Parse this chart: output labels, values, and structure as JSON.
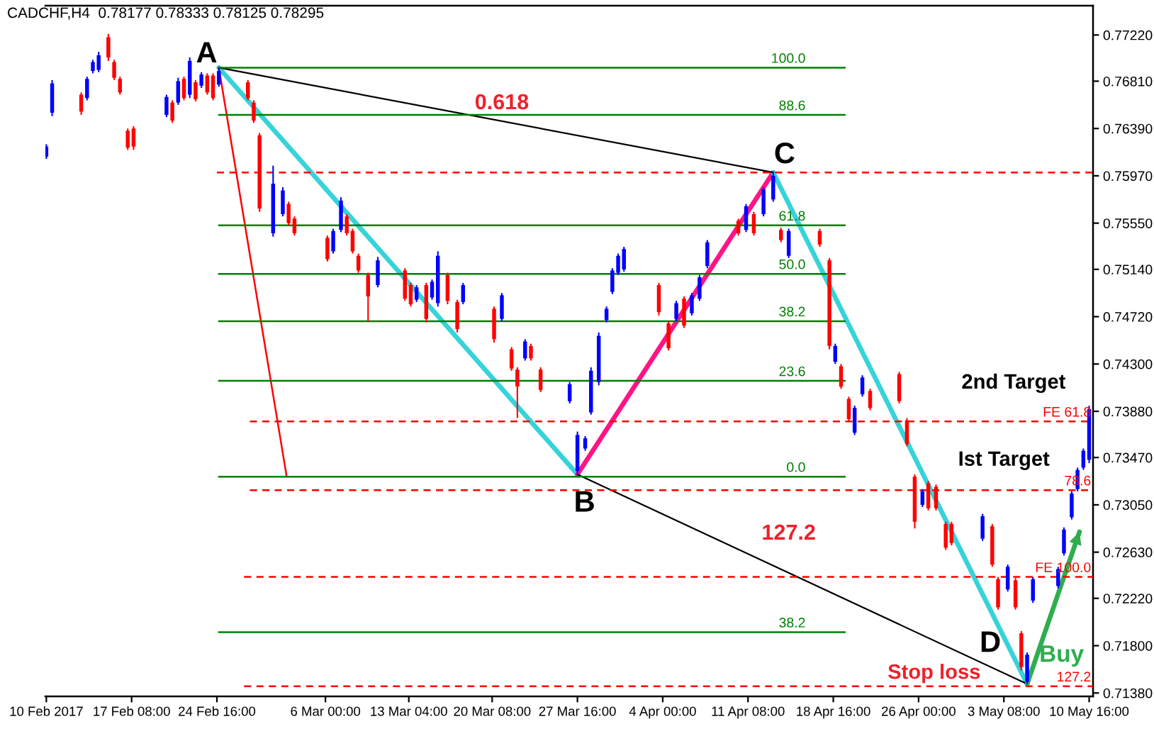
{
  "chart_data": {
    "type": "candlestick",
    "title": "CADCHF,H4  0.78177 0.78333 0.78125 0.78295",
    "x": [
      "2017-02-10T00:00",
      "2017-02-10T12:00",
      "2017-02-13T00:00",
      "2017-02-13T12:00",
      "2017-02-14T00:00",
      "2017-02-14T12:00",
      "2017-02-15T08:00",
      "2017-02-15T20:00",
      "2017-02-16T08:00",
      "2017-02-17T00:00",
      "2017-02-17T12:00",
      "2017-02-20T08:00",
      "2017-02-20T20:00",
      "2017-02-21T08:00",
      "2017-02-21T20:00",
      "2017-02-22T08:00",
      "2017-02-22T20:00",
      "2017-02-23T08:00",
      "2017-02-23T20:00",
      "2017-02-24T08:00",
      "2017-02-24T20:00",
      "2017-02-27T08:00",
      "2017-02-27T20:00",
      "2017-02-28T08:00",
      "2017-03-01T12:00",
      "2017-03-02T08:00",
      "2017-03-02T20:00",
      "2017-03-03T08:00",
      "2017-03-06T04:00",
      "2017-03-06T16:00",
      "2017-03-07T08:00",
      "2017-03-07T20:00",
      "2017-03-08T08:00",
      "2017-03-08T20:00",
      "2017-03-09T16:00",
      "2017-03-10T12:00",
      "2017-03-12T20:00",
      "2017-03-13T08:00",
      "2017-03-13T20:00",
      "2017-03-14T16:00",
      "2017-03-15T04:00",
      "2017-03-15T16:00",
      "2017-03-16T12:00",
      "2017-03-17T08:00",
      "2017-03-17T20:00",
      "2017-03-20T12:00",
      "2017-03-21T04:00",
      "2017-03-22T00:00",
      "2017-03-22T12:00",
      "2017-03-23T04:00",
      "2017-03-23T16:00",
      "2017-03-24T12:00",
      "2017-03-27T00:00",
      "2017-03-27T16:00",
      "2017-03-28T08:00",
      "2017-03-28T20:00",
      "2017-03-29T12:00",
      "2017-03-30T04:00",
      "2017-03-30T16:00",
      "2017-03-31T04:00",
      "2017-03-31T16:00",
      "2017-04-03T16:00",
      "2017-04-04T12:00",
      "2017-04-05T04:00",
      "2017-04-05T20:00",
      "2017-04-06T12:00",
      "2017-04-07T04:00",
      "2017-04-07T20:00",
      "2017-04-10T12:00",
      "2017-04-11T04:00",
      "2017-04-11T20:00",
      "2017-04-12T16:00",
      "2017-04-13T12:00",
      "2017-04-14T04:00",
      "2017-04-14T20:00",
      "2017-04-17T12:00",
      "2017-04-18T08:00",
      "2017-04-18T20:00",
      "2017-04-19T08:00",
      "2017-04-20T00:00",
      "2017-04-20T12:00",
      "2017-04-21T04:00",
      "2017-04-21T20:00",
      "2017-04-24T08:00",
      "2017-04-25T00:00",
      "2017-04-25T16:00",
      "2017-04-26T08:00",
      "2017-04-26T20:00",
      "2017-04-27T12:00",
      "2017-04-28T08:00",
      "2017-04-28T20:00",
      "2017-05-01T12:00",
      "2017-05-02T08:00",
      "2017-05-02T20:00",
      "2017-05-03T16:00",
      "2017-05-04T08:00",
      "2017-05-04T20:00",
      "2017-05-05T08:00",
      "2017-05-05T20:00",
      "2017-05-08T00:00",
      "2017-05-08T12:00",
      "2017-05-09T04:00",
      "2017-05-09T16:00",
      "2017-05-10T04:00",
      "2017-05-10T16:00"
    ],
    "ohlc": [
      [
        0.7614,
        0.7625,
        0.7612,
        0.7623
      ],
      [
        0.7653,
        0.7682,
        0.765,
        0.7679
      ],
      [
        0.7669,
        0.7671,
        0.7651,
        0.7654
      ],
      [
        0.7666,
        0.7685,
        0.7664,
        0.7683
      ],
      [
        0.769,
        0.77,
        0.7688,
        0.7698
      ],
      [
        0.7691,
        0.7707,
        0.7689,
        0.7704
      ],
      [
        0.772,
        0.7723,
        0.7699,
        0.7702
      ],
      [
        0.7698,
        0.77,
        0.7682,
        0.7684
      ],
      [
        0.7683,
        0.7685,
        0.7669,
        0.7671
      ],
      [
        0.7637,
        0.7639,
        0.762,
        0.7622
      ],
      [
        0.7639,
        0.7641,
        0.762,
        0.7623
      ],
      [
        0.7651,
        0.7669,
        0.7649,
        0.7667
      ],
      [
        0.7662,
        0.7664,
        0.7644,
        0.7646
      ],
      [
        0.7662,
        0.7684,
        0.766,
        0.7681
      ],
      [
        0.7683,
        0.7685,
        0.7664,
        0.7666
      ],
      [
        0.7669,
        0.7702,
        0.7666,
        0.7699
      ],
      [
        0.768,
        0.7682,
        0.7663,
        0.7665
      ],
      [
        0.7677,
        0.7689,
        0.7675,
        0.7687
      ],
      [
        0.7686,
        0.7688,
        0.7669,
        0.7671
      ],
      [
        0.7686,
        0.7688,
        0.7664,
        0.7666
      ],
      [
        0.7678,
        0.7693,
        0.7676,
        0.769
      ],
      [
        0.768,
        0.7682,
        0.7664,
        0.7666
      ],
      [
        0.7662,
        0.7664,
        0.7644,
        0.7646
      ],
      [
        0.7633,
        0.7635,
        0.7565,
        0.7568
      ],
      [
        0.7546,
        0.7606,
        0.7543,
        0.759
      ],
      [
        0.7563,
        0.7587,
        0.7561,
        0.7584
      ],
      [
        0.7572,
        0.7574,
        0.7553,
        0.7555
      ],
      [
        0.7559,
        0.7561,
        0.7544,
        0.7546
      ],
      [
        0.7542,
        0.7544,
        0.7521,
        0.7523
      ],
      [
        0.753,
        0.755,
        0.7528,
        0.7548
      ],
      [
        0.7549,
        0.7578,
        0.7547,
        0.7575
      ],
      [
        0.7561,
        0.7563,
        0.7544,
        0.7546
      ],
      [
        0.7548,
        0.755,
        0.7528,
        0.753
      ],
      [
        0.7526,
        0.7528,
        0.7511,
        0.7513
      ],
      [
        0.7509,
        0.7511,
        0.7468,
        0.749
      ],
      [
        0.75,
        0.7525,
        0.7498,
        0.7522
      ],
      [
        0.7513,
        0.7515,
        0.7486,
        0.7488
      ],
      [
        0.75,
        0.7502,
        0.7481,
        0.7483
      ],
      [
        0.7487,
        0.75,
        0.7485,
        0.7498
      ],
      [
        0.75,
        0.7502,
        0.7467,
        0.747
      ],
      [
        0.7489,
        0.7505,
        0.7487,
        0.7503
      ],
      [
        0.7484,
        0.753,
        0.7481,
        0.7526
      ],
      [
        0.7509,
        0.7511,
        0.7483,
        0.7486
      ],
      [
        0.7485,
        0.7487,
        0.7458,
        0.7461
      ],
      [
        0.7485,
        0.7502,
        0.7483,
        0.75
      ],
      [
        0.7479,
        0.7481,
        0.7449,
        0.7452
      ],
      [
        0.747,
        0.7493,
        0.7468,
        0.7491
      ],
      [
        0.7443,
        0.7445,
        0.7424,
        0.7426
      ],
      [
        0.7425,
        0.7427,
        0.7382,
        0.741
      ],
      [
        0.7435,
        0.7452,
        0.7433,
        0.745
      ],
      [
        0.7446,
        0.7448,
        0.7433,
        0.7435
      ],
      [
        0.7425,
        0.7427,
        0.7405,
        0.7407
      ],
      [
        0.7397,
        0.7414,
        0.7395,
        0.7412
      ],
      [
        0.7335,
        0.737,
        0.7332,
        0.7367
      ],
      [
        0.7355,
        0.7366,
        0.7353,
        0.7364
      ],
      [
        0.7387,
        0.7427,
        0.7385,
        0.7424
      ],
      [
        0.7414,
        0.7458,
        0.7411,
        0.7455
      ],
      [
        0.7469,
        0.7481,
        0.7467,
        0.7479
      ],
      [
        0.7494,
        0.7515,
        0.7492,
        0.7513
      ],
      [
        0.7511,
        0.7528,
        0.7509,
        0.7526
      ],
      [
        0.7514,
        0.7534,
        0.7512,
        0.7532
      ],
      [
        0.75,
        0.7502,
        0.7473,
        0.7476
      ],
      [
        0.7466,
        0.7468,
        0.7442,
        0.7444
      ],
      [
        0.747,
        0.7486,
        0.7468,
        0.7484
      ],
      [
        0.7488,
        0.749,
        0.7462,
        0.7464
      ],
      [
        0.7475,
        0.7493,
        0.7473,
        0.7491
      ],
      [
        0.7488,
        0.7509,
        0.7486,
        0.7507
      ],
      [
        0.7517,
        0.754,
        0.7515,
        0.7538
      ],
      [
        0.7557,
        0.7559,
        0.7544,
        0.7546
      ],
      [
        0.7549,
        0.7572,
        0.7547,
        0.757
      ],
      [
        0.7563,
        0.7565,
        0.7544,
        0.7546
      ],
      [
        0.7563,
        0.7587,
        0.7561,
        0.7585
      ],
      [
        0.7576,
        0.76,
        0.7574,
        0.7597
      ],
      [
        0.7549,
        0.7551,
        0.7538,
        0.754
      ],
      [
        0.7526,
        0.755,
        0.7524,
        0.7548
      ],
      [
        0.7548,
        0.755,
        0.7534,
        0.7536
      ],
      [
        0.7522,
        0.7524,
        0.7443,
        0.7446
      ],
      [
        0.7432,
        0.7448,
        0.743,
        0.7446
      ],
      [
        0.7428,
        0.743,
        0.7408,
        0.741
      ],
      [
        0.7399,
        0.7401,
        0.7379,
        0.7381
      ],
      [
        0.7369,
        0.7393,
        0.7367,
        0.7391
      ],
      [
        0.7403,
        0.742,
        0.7401,
        0.7418
      ],
      [
        0.7406,
        0.7408,
        0.7389,
        0.7391
      ],
      [
        0.7421,
        0.7423,
        0.7395,
        0.7397
      ],
      [
        0.738,
        0.7382,
        0.7357,
        0.7359
      ],
      [
        0.733,
        0.7332,
        0.7284,
        0.729
      ],
      [
        0.7305,
        0.7319,
        0.7303,
        0.7317
      ],
      [
        0.7324,
        0.7326,
        0.73,
        0.7302
      ],
      [
        0.7321,
        0.7323,
        0.73,
        0.7302
      ],
      [
        0.7288,
        0.729,
        0.7265,
        0.7267
      ],
      [
        0.7288,
        0.729,
        0.7269,
        0.7271
      ],
      [
        0.7275,
        0.7297,
        0.7273,
        0.7295
      ],
      [
        0.7286,
        0.7288,
        0.725,
        0.7252
      ],
      [
        0.7239,
        0.7241,
        0.7212,
        0.7214
      ],
      [
        0.723,
        0.7252,
        0.7228,
        0.725
      ],
      [
        0.7238,
        0.724,
        0.7212,
        0.7214
      ],
      [
        0.7191,
        0.7193,
        0.7158,
        0.7161
      ],
      [
        0.7148,
        0.7174,
        0.7146,
        0.7172
      ],
      [
        0.722,
        0.7241,
        0.7218,
        0.7239
      ],
      [
        0.7233,
        0.725,
        0.7231,
        0.7248
      ],
      [
        0.7262,
        0.7285,
        0.726,
        0.7283
      ],
      [
        0.7294,
        0.7317,
        0.7292,
        0.7315
      ],
      [
        0.7319,
        0.7338,
        0.7317,
        0.7336
      ],
      [
        0.7338,
        0.7355,
        0.7336,
        0.7353
      ],
      [
        0.7345,
        0.7393,
        0.7342,
        0.739
      ]
    ],
    "colors": [
      "#0000ff",
      "#0000ff",
      "#ff0000",
      "#0000ff",
      "#0000ff",
      "#0000ff",
      "#ff0000",
      "#ff0000",
      "#ff0000",
      "#ff0000",
      "#ff0000",
      "#0000ff",
      "#ff0000",
      "#0000ff",
      "#ff0000",
      "#0000ff",
      "#ff0000",
      "#0000ff",
      "#ff0000",
      "#ff0000",
      "#0000ff",
      "#ff0000",
      "#ff0000",
      "#ff0000",
      "#0000ff",
      "#0000ff",
      "#ff0000",
      "#ff0000",
      "#ff0000",
      "#0000ff",
      "#0000ff",
      "#ff0000",
      "#ff0000",
      "#ff0000",
      "#ff0000",
      "#0000ff",
      "#ff0000",
      "#ff0000",
      "#0000ff",
      "#ff0000",
      "#0000ff",
      "#0000ff",
      "#ff0000",
      "#ff0000",
      "#0000ff",
      "#ff0000",
      "#0000ff",
      "#ff0000",
      "#ff0000",
      "#0000ff",
      "#ff0000",
      "#ff0000",
      "#0000ff",
      "#0000ff",
      "#0000ff",
      "#0000ff",
      "#0000ff",
      "#0000ff",
      "#0000ff",
      "#0000ff",
      "#0000ff",
      "#ff0000",
      "#ff0000",
      "#0000ff",
      "#ff0000",
      "#0000ff",
      "#0000ff",
      "#0000ff",
      "#ff0000",
      "#0000ff",
      "#ff0000",
      "#0000ff",
      "#0000ff",
      "#ff0000",
      "#0000ff",
      "#ff0000",
      "#ff0000",
      "#0000ff",
      "#ff0000",
      "#ff0000",
      "#0000ff",
      "#0000ff",
      "#ff0000",
      "#ff0000",
      "#ff0000",
      "#ff0000",
      "#0000ff",
      "#ff0000",
      "#ff0000",
      "#ff0000",
      "#ff0000",
      "#0000ff",
      "#ff0000",
      "#ff0000",
      "#0000ff",
      "#ff0000",
      "#ff0000",
      "#0000ff",
      "#0000ff",
      "#0000ff",
      "#0000ff",
      "#0000ff",
      "#0000ff",
      "#0000ff",
      "#0000ff"
    ],
    "xlim": [
      "2017-02-09T22:00",
      "2017-05-11T00:00"
    ],
    "xticks": [
      {
        "value": "2017-02-10T00:00",
        "label": "10 Feb 2017"
      },
      {
        "value": "2017-02-17T08:00",
        "label": "17 Feb 08:00"
      },
      {
        "value": "2017-02-24T16:00",
        "label": "24 Feb 16:00"
      },
      {
        "value": "2017-03-06T00:00",
        "label": "6 Mar 00:00"
      },
      {
        "value": "2017-03-13T04:00",
        "label": "13 Mar 04:00"
      },
      {
        "value": "2017-03-20T08:00",
        "label": "20 Mar 08:00"
      },
      {
        "value": "2017-03-27T16:00",
        "label": "27 Mar 16:00"
      },
      {
        "value": "2017-04-04T00:00",
        "label": "4 Apr 00:00"
      },
      {
        "value": "2017-04-11T08:00",
        "label": "11 Apr 08:00"
      },
      {
        "value": "2017-04-18T16:00",
        "label": "18 Apr 16:00"
      },
      {
        "value": "2017-04-26T00:00",
        "label": "26 Apr 00:00"
      },
      {
        "value": "2017-05-03T08:00",
        "label": "3 May 08:00"
      },
      {
        "value": "2017-05-10T16:00",
        "label": "10 May 16:00"
      }
    ],
    "ylim": [
      0.7135,
      0.7748
    ],
    "yticks": [
      {
        "value": 0.7138,
        "label": "0.71380"
      },
      {
        "value": 0.718,
        "label": "0.71800"
      },
      {
        "value": 0.7222,
        "label": "0.72220"
      },
      {
        "value": 0.7263,
        "label": "0.72630"
      },
      {
        "value": 0.7305,
        "label": "0.73050"
      },
      {
        "value": 0.7347,
        "label": "0.73470"
      },
      {
        "value": 0.7388,
        "label": "0.73880"
      },
      {
        "value": 0.743,
        "label": "0.74300"
      },
      {
        "value": 0.7472,
        "label": "0.74720"
      },
      {
        "value": 0.7514,
        "label": "0.75140"
      },
      {
        "value": 0.7555,
        "label": "0.75550"
      },
      {
        "value": 0.7597,
        "label": "0.75970"
      },
      {
        "value": 0.7639,
        "label": "0.76390"
      },
      {
        "value": 0.7681,
        "label": "0.76810"
      },
      {
        "value": 0.7722,
        "label": "0.77220"
      }
    ],
    "series": [
      {
        "type": "line",
        "x": [
          "2017-02-24T20:00",
          "2017-03-27T16:00"
        ],
        "values": [
          0.7693,
          0.7332
        ],
        "color": "#36d3da",
        "line_style": "solid"
      },
      {
        "type": "line",
        "x": [
          "2017-03-27T16:00",
          "2017-04-13T12:00"
        ],
        "values": [
          0.7332,
          0.76
        ],
        "color": "#ff1486",
        "line_style": "solid"
      },
      {
        "type": "line",
        "x": [
          "2017-04-13T12:00",
          "2017-05-05T08:00"
        ],
        "values": [
          0.76,
          0.7146
        ],
        "color": "#36d3da",
        "line_style": "solid"
      },
      {
        "type": "line",
        "x": [
          "2017-02-24T20:00",
          "2017-04-13T12:00"
        ],
        "values": [
          0.7693,
          0.76
        ],
        "color": "#000000",
        "line_style": "solid"
      },
      {
        "type": "line",
        "x": [
          "2017-03-27T16:00",
          "2017-05-05T08:00"
        ],
        "values": [
          0.7332,
          0.7146
        ],
        "color": "#000000",
        "line_style": "solid"
      },
      {
        "type": "line",
        "x": [
          "2017-02-24T20:00",
          "2017-03-02T16:00"
        ],
        "values": [
          0.7693,
          0.733
        ],
        "color": "#ff0000",
        "line_style": "solid"
      },
      {
        "type": "line",
        "x": [
          "2017-05-05T08:00",
          "2017-05-09T20:00"
        ],
        "values": [
          0.7146,
          0.7281
        ],
        "color": "#2fad4f",
        "line_style": "solid"
      },
      {
        "type": "line",
        "name": "100.0",
        "x": [
          "2017-02-24T20:00",
          "2017-04-19T16:00"
        ],
        "values": [
          0.7693,
          0.7693
        ],
        "color": "#008000",
        "line_style": "solid"
      },
      {
        "type": "line",
        "name": "88.6",
        "x": [
          "2017-02-24T20:00",
          "2017-04-19T16:00"
        ],
        "values": [
          0.7651,
          0.7651
        ],
        "color": "#008000",
        "line_style": "solid"
      },
      {
        "type": "line",
        "name": "61.8",
        "x": [
          "2017-02-24T20:00",
          "2017-04-19T16:00"
        ],
        "values": [
          0.7553,
          0.7553
        ],
        "color": "#008000",
        "line_style": "solid"
      },
      {
        "type": "line",
        "name": "50.0",
        "x": [
          "2017-02-24T20:00",
          "2017-04-19T16:00"
        ],
        "values": [
          0.751,
          0.751
        ],
        "color": "#008000",
        "line_style": "solid"
      },
      {
        "type": "line",
        "name": "38.2",
        "x": [
          "2017-02-24T20:00",
          "2017-04-19T16:00"
        ],
        "values": [
          0.7468,
          0.7468
        ],
        "color": "#008000",
        "line_style": "solid"
      },
      {
        "type": "line",
        "name": "23.6",
        "x": [
          "2017-02-24T20:00",
          "2017-04-19T16:00"
        ],
        "values": [
          0.7415,
          0.7415
        ],
        "color": "#008000",
        "line_style": "solid"
      },
      {
        "type": "line",
        "name": "0.0",
        "x": [
          "2017-02-24T20:00",
          "2017-04-19T16:00"
        ],
        "values": [
          0.733,
          0.733
        ],
        "color": "#008000",
        "line_style": "solid"
      },
      {
        "type": "line",
        "name": "38.2",
        "x": [
          "2017-02-24T20:00",
          "2017-04-19T16:00"
        ],
        "values": [
          0.7192,
          0.7192
        ],
        "color": "#008000",
        "line_style": "solid"
      },
      {
        "type": "line",
        "x": [
          "2017-02-24T16:00",
          "2017-05-11T00:00"
        ],
        "values": [
          0.76,
          0.76
        ],
        "color": "#ff0000",
        "line_style": "dashed"
      },
      {
        "type": "line",
        "name": "FE 61.8",
        "x": [
          "2017-02-27T12:00",
          "2017-05-11T00:00"
        ],
        "values": [
          0.7379,
          0.7379
        ],
        "color": "#ff0000",
        "line_style": "dashed"
      },
      {
        "type": "line",
        "name": "78.6",
        "x": [
          "2017-02-27T12:00",
          "2017-05-11T00:00"
        ],
        "values": [
          0.7318,
          0.7318
        ],
        "color": "#ff0000",
        "line_style": "dashed"
      },
      {
        "type": "line",
        "name": "FE 100.0",
        "x": [
          "2017-02-27T00:00",
          "2017-05-11T00:00"
        ],
        "values": [
          0.7241,
          0.7241
        ],
        "color": "#ff0000",
        "line_style": "dashed"
      },
      {
        "type": "line",
        "name": "127.2",
        "x": [
          "2017-02-27T00:00",
          "2017-05-11T00:00"
        ],
        "values": [
          0.7144,
          0.7144
        ],
        "color": "#ff0000",
        "line_style": "dashed"
      }
    ],
    "annotations": [
      {
        "text": "A",
        "x": "2017-02-24T20:00",
        "y": 0.7693
      },
      {
        "text": "B",
        "x": "2017-03-27T16:00",
        "y": 0.7332
      },
      {
        "text": "C",
        "x": "2017-04-13T12:00",
        "y": 0.76
      },
      {
        "text": "D",
        "x": "2017-05-05T08:00",
        "y": 0.7146
      },
      {
        "text": "0.618",
        "x": "2017-03-21T04:00",
        "y": 0.7645
      },
      {
        "text": "127.2",
        "x": "2017-04-14T20:00",
        "y": 0.7245
      },
      {
        "text": "2nd Target",
        "x": "2017-05-04T04:00",
        "y": 0.7379
      },
      {
        "text": "Ist Target",
        "x": "2017-05-03T08:00",
        "y": 0.7318
      },
      {
        "text": "Buy",
        "x": "2017-05-05T08:00",
        "y": 0.7146
      },
      {
        "text": "Stop loss",
        "x": "2017-04-27T08:00",
        "y": 0.7144
      }
    ]
  }
}
